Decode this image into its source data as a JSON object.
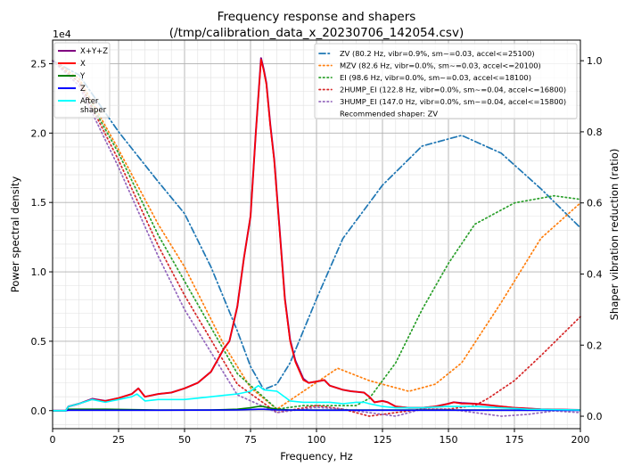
{
  "chart_data": {
    "type": "line",
    "title": [
      "Frequency response and shapers",
      "(/tmp/calibration_data_x_20230706_142054.csv)"
    ],
    "xlabel": "Frequency, Hz",
    "ylabel": "Power spectral density",
    "y2label": "Shaper vibration reduction (ratio)",
    "y_multiplier": "1e4",
    "xlim": [
      0,
      200
    ],
    "ylim": [
      -0.13,
      2.67
    ],
    "y2lim": [
      -0.035,
      1.058
    ],
    "xticks": [
      "0",
      "25",
      "50",
      "75",
      "100",
      "125",
      "150",
      "175",
      "200"
    ],
    "xtick_values": [
      0,
      25,
      50,
      75,
      100,
      125,
      150,
      175,
      200
    ],
    "yticks": [
      "0.0",
      "0.5",
      "1.0",
      "1.5",
      "2.0",
      "2.5"
    ],
    "ytick_values": [
      0,
      0.5,
      1.0,
      1.5,
      2.0,
      2.5
    ],
    "y2ticks": [
      "0.0",
      "0.2",
      "0.4",
      "0.6",
      "0.8",
      "1.0"
    ],
    "y2tick_values": [
      0,
      0.2,
      0.4,
      0.6,
      0.8,
      1.0
    ],
    "grid": true,
    "psd_legend_placement": "upper-left",
    "shaper_legend_placement": "upper-right",
    "psd_series": [
      {
        "name": "X+Y+Z",
        "color": "#800080",
        "width": 2,
        "x": [
          0,
          5,
          6,
          10,
          15,
          20,
          25,
          30,
          32.5,
          35,
          40,
          45,
          50,
          55,
          60,
          65,
          67,
          70,
          72.5,
          75,
          77,
          79,
          80,
          81,
          82.5,
          84,
          86,
          88,
          90,
          92,
          95,
          97,
          100,
          103,
          105,
          110,
          113,
          118,
          120,
          122,
          125,
          127,
          130,
          135,
          140,
          145,
          150,
          152,
          155,
          160,
          165,
          170,
          175,
          180,
          185,
          200
        ],
        "y": [
          0,
          0,
          0.03,
          0.05,
          0.085,
          0.07,
          0.09,
          0.12,
          0.16,
          0.1,
          0.12,
          0.13,
          0.16,
          0.2,
          0.28,
          0.45,
          0.5,
          0.75,
          1.1,
          1.4,
          2.0,
          2.54,
          2.46,
          2.36,
          2.06,
          1.81,
          1.31,
          0.81,
          0.51,
          0.36,
          0.23,
          0.2,
          0.21,
          0.22,
          0.18,
          0.15,
          0.14,
          0.13,
          0.1,
          0.06,
          0.07,
          0.06,
          0.03,
          0.02,
          0.02,
          0.03,
          0.05,
          0.06,
          0.055,
          0.05,
          0.04,
          0.03,
          0.02,
          0.015,
          0.01,
          0.005
        ]
      },
      {
        "name": "X",
        "color": "#ff0000",
        "width": 1.6,
        "x": [
          0,
          5,
          6,
          10,
          15,
          20,
          25,
          30,
          32.5,
          35,
          40,
          45,
          50,
          55,
          60,
          65,
          67,
          70,
          72.5,
          75,
          77,
          79,
          80,
          81,
          82.5,
          84,
          86,
          88,
          90,
          92,
          95,
          97,
          100,
          103,
          105,
          110,
          113,
          118,
          120,
          122,
          125,
          127,
          130,
          135,
          140,
          145,
          150,
          152,
          155,
          160,
          165,
          170,
          175,
          180,
          185,
          200
        ],
        "y": [
          0,
          0,
          0.03,
          0.05,
          0.08,
          0.07,
          0.09,
          0.12,
          0.16,
          0.1,
          0.12,
          0.13,
          0.16,
          0.2,
          0.28,
          0.45,
          0.5,
          0.75,
          1.1,
          1.4,
          2.0,
          2.53,
          2.45,
          2.35,
          2.05,
          1.8,
          1.3,
          0.8,
          0.5,
          0.35,
          0.22,
          0.2,
          0.21,
          0.22,
          0.18,
          0.15,
          0.14,
          0.13,
          0.1,
          0.06,
          0.07,
          0.06,
          0.03,
          0.02,
          0.02,
          0.03,
          0.05,
          0.06,
          0.05,
          0.05,
          0.04,
          0.03,
          0.02,
          0.015,
          0.01,
          0.005
        ]
      },
      {
        "name": "Y",
        "color": "#008000",
        "width": 1.6,
        "x": [
          0,
          5,
          6,
          20,
          40,
          60,
          70,
          75,
          78,
          80,
          82,
          85,
          90,
          100,
          120,
          140,
          160,
          200
        ],
        "y": [
          0,
          0,
          0.01,
          0.01,
          0.005,
          0.005,
          0.01,
          0.02,
          0.03,
          0.03,
          0.02,
          0.01,
          0.005,
          0.005,
          0.005,
          0.005,
          0.005,
          0.003
        ]
      },
      {
        "name": "Z",
        "color": "#0000ff",
        "width": 1.6,
        "x": [
          0,
          5,
          6,
          40,
          70,
          78,
          80,
          85,
          100,
          150,
          200
        ],
        "y": [
          0,
          0,
          0.003,
          0.003,
          0.005,
          0.01,
          0.01,
          0.005,
          0.003,
          0.003,
          0.002
        ]
      },
      {
        "name": "After\nshaper",
        "color": "#00ffff",
        "width": 1.6,
        "x": [
          0,
          5,
          6,
          10,
          15,
          20,
          25,
          30,
          32,
          35,
          40,
          50,
          60,
          65,
          70,
          75,
          78,
          80,
          85,
          90,
          95,
          100,
          105,
          110,
          115,
          118,
          120,
          125,
          130,
          140,
          150,
          160,
          170,
          180,
          200
        ],
        "y": [
          0,
          0,
          0.03,
          0.05,
          0.08,
          0.06,
          0.08,
          0.1,
          0.12,
          0.07,
          0.08,
          0.08,
          0.1,
          0.11,
          0.12,
          0.14,
          0.18,
          0.15,
          0.14,
          0.07,
          0.06,
          0.06,
          0.06,
          0.05,
          0.06,
          0.06,
          0.05,
          0.03,
          0.02,
          0.02,
          0.03,
          0.03,
          0.02,
          0.01,
          0.005
        ]
      }
    ],
    "shaper_series": [
      {
        "name": "ZV (80.2 Hz, vibr=0.9%, sm~=0.03, accel<=25100)",
        "color": "#1f77b4",
        "dash": "dashdot",
        "x": [
          0,
          10,
          25,
          40,
          50,
          60,
          70,
          75,
          80,
          85,
          90,
          100,
          110,
          125,
          140,
          155,
          170,
          185,
          200
        ],
        "y": [
          1.0,
          0.96,
          0.8,
          0.66,
          0.57,
          0.42,
          0.24,
          0.14,
          0.075,
          0.09,
          0.15,
          0.33,
          0.5,
          0.65,
          0.76,
          0.79,
          0.74,
          0.64,
          0.53
        ]
      },
      {
        "name": "MZV (82.6 Hz, vibr=0.0%, sm~=0.03, accel<=20100)",
        "color": "#ff7f0e",
        "dash": "dotted",
        "x": [
          0,
          10,
          25,
          40,
          50,
          65,
          75,
          85,
          95,
          108,
          120,
          135,
          145,
          155,
          170,
          185,
          200
        ],
        "y": [
          1.0,
          0.95,
          0.75,
          0.54,
          0.42,
          0.2,
          0.08,
          0.02,
          0.07,
          0.135,
          0.1,
          0.07,
          0.09,
          0.15,
          0.32,
          0.5,
          0.6
        ]
      },
      {
        "name": "EI (98.6 Hz, vibr=0.0%, sm~=0.03, accel<=18100)",
        "color": "#2ca02c",
        "dash": "dotted",
        "x": [
          0,
          10,
          25,
          40,
          50,
          70,
          85,
          95,
          105,
          115,
          120,
          130,
          140,
          150,
          160,
          175,
          190,
          200
        ],
        "y": [
          1.0,
          0.94,
          0.74,
          0.51,
          0.38,
          0.12,
          0.02,
          0.03,
          0.03,
          0.03,
          0.05,
          0.15,
          0.3,
          0.43,
          0.54,
          0.6,
          0.62,
          0.61
        ]
      },
      {
        "name": "2HUMP_EI (122.8 Hz, vibr=0.0%, sm~=0.04, accel<=16800)",
        "color": "#d62728",
        "dash": "dotted",
        "x": [
          0,
          10,
          25,
          40,
          50,
          70,
          85,
          100,
          110,
          120,
          130,
          140,
          150,
          160,
          165,
          175,
          185,
          200
        ],
        "y": [
          1.0,
          0.94,
          0.72,
          0.48,
          0.34,
          0.09,
          0.01,
          0.03,
          0.02,
          0.0,
          0.01,
          0.02,
          0.02,
          0.03,
          0.05,
          0.1,
          0.17,
          0.28
        ]
      },
      {
        "name": "3HUMP_EI (147.0 Hz, vibr=0.0%, sm~=0.04, accel<=15800)",
        "color": "#9467bd",
        "dash": "dotted",
        "x": [
          0,
          10,
          25,
          40,
          50,
          70,
          85,
          100,
          110,
          120,
          130,
          140,
          150,
          160,
          170,
          180,
          190,
          200
        ],
        "y": [
          1.0,
          0.93,
          0.7,
          0.45,
          0.3,
          0.06,
          0.01,
          0.025,
          0.02,
          0.01,
          0.0,
          0.02,
          0.02,
          0.01,
          0.0,
          0.005,
          0.015,
          0.01
        ]
      }
    ],
    "recommendation": "Recommended shaper: ZV"
  }
}
